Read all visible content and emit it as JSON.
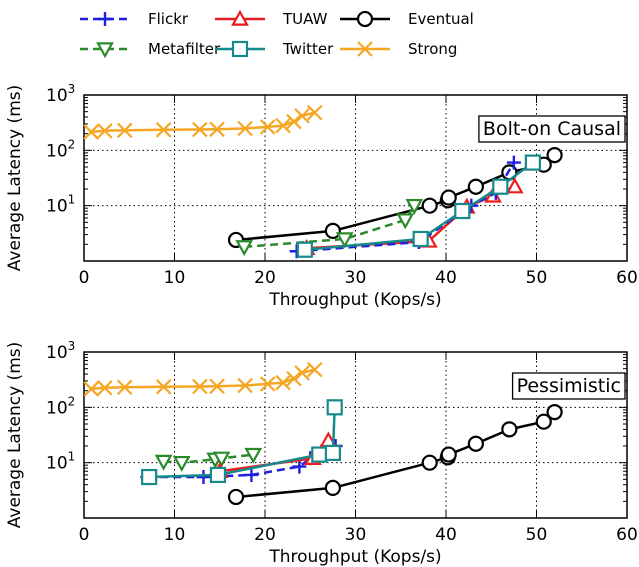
{
  "legend": {
    "items": [
      {
        "key": "flickr",
        "label": "Flickr"
      },
      {
        "key": "tuaw",
        "label": "TUAW"
      },
      {
        "key": "eventual",
        "label": "Eventual"
      },
      {
        "key": "metafilter",
        "label": "Metafilter"
      },
      {
        "key": "twitter",
        "label": "Twitter"
      },
      {
        "key": "strong",
        "label": "Strong"
      }
    ]
  },
  "series_styles": {
    "flickr": {
      "color": "#1f1fe0",
      "marker": "plus",
      "dash": "8,5"
    },
    "tuaw": {
      "color": "#ee1c1c",
      "marker": "triangle-up",
      "dash": ""
    },
    "eventual": {
      "color": "#000000",
      "marker": "circle",
      "dash": ""
    },
    "metafilter": {
      "color": "#2a8a2a",
      "marker": "triangle-down",
      "dash": "8,5"
    },
    "twitter": {
      "color": "#168a8a",
      "marker": "square",
      "dash": ""
    },
    "strong": {
      "color": "#f5a623",
      "marker": "x",
      "dash": ""
    }
  },
  "chart_data": [
    {
      "type": "line",
      "title": "Bolt-on Causal",
      "xlabel": "Throughput (Kops/s)",
      "ylabel": "Average Latency (ms)",
      "xlim": [
        0,
        60
      ],
      "ylim": [
        1,
        1000
      ],
      "yscale": "log",
      "xticks": [
        "0",
        "10",
        "20",
        "30",
        "40",
        "50",
        "60"
      ],
      "yticks": [
        "10^1",
        "10^2",
        "10^3"
      ],
      "grid": true,
      "series": [
        {
          "key": "strong",
          "x": [
            0.8,
            2.3,
            4.5,
            8.8,
            12.8,
            14.7,
            17.8,
            20.3,
            22.0,
            23.2,
            24.1,
            25.5
          ],
          "y": [
            215,
            225,
            230,
            235,
            238,
            240,
            248,
            265,
            280,
            330,
            420,
            480
          ]
        },
        {
          "key": "eventual",
          "x": [
            16.8,
            27.5,
            38.2,
            40.2,
            40.3,
            43.3,
            47.0,
            50.8,
            52.0
          ],
          "y": [
            2.4,
            3.5,
            10.0,
            12.5,
            14.0,
            22.0,
            40.0,
            55.0,
            82.0
          ]
        },
        {
          "key": "metafilter",
          "x": [
            17.7,
            28.8,
            35.5,
            36.5
          ],
          "y": [
            1.8,
            2.5,
            5.5,
            10.0
          ]
        },
        {
          "key": "tuaw",
          "x": [
            24.6,
            38.1,
            42.3,
            45.2,
            47.6
          ],
          "y": [
            1.7,
            2.3,
            9.5,
            15.0,
            22.0
          ]
        },
        {
          "key": "flickr",
          "x": [
            23.5,
            37.0,
            42.8,
            45.5,
            47.5
          ],
          "y": [
            1.5,
            2.2,
            10.0,
            17.0,
            60.0
          ]
        },
        {
          "key": "twitter",
          "x": [
            24.4,
            37.2,
            41.8,
            46.0,
            49.6
          ],
          "y": [
            1.6,
            2.5,
            8.0,
            22.0,
            60.0
          ]
        }
      ]
    },
    {
      "type": "line",
      "title": "Pessimistic",
      "xlabel": "Throughput (Kops/s)",
      "ylabel": "Average Latency (ms)",
      "xlim": [
        0,
        60
      ],
      "ylim": [
        1,
        1000
      ],
      "yscale": "log",
      "xticks": [
        "0",
        "10",
        "20",
        "30",
        "40",
        "50",
        "60"
      ],
      "yticks": [
        "10^1",
        "10^2",
        "10^3"
      ],
      "grid": true,
      "series": [
        {
          "key": "strong",
          "x": [
            0.8,
            2.3,
            4.5,
            8.8,
            12.8,
            14.7,
            17.8,
            20.3,
            22.0,
            23.2,
            24.1,
            25.5
          ],
          "y": [
            215,
            225,
            230,
            235,
            238,
            240,
            248,
            265,
            280,
            330,
            420,
            480
          ]
        },
        {
          "key": "eventual",
          "x": [
            16.8,
            27.5,
            38.2,
            40.2,
            40.3,
            43.3,
            47.0,
            50.8,
            52.0
          ],
          "y": [
            2.4,
            3.5,
            10.0,
            12.5,
            14.0,
            22.0,
            40.0,
            55.0,
            82.0
          ]
        },
        {
          "key": "metafilter",
          "x": [
            8.8,
            10.8,
            14.5,
            15.2,
            18.7
          ],
          "y": [
            10.5,
            10.0,
            11.5,
            12.0,
            14.0
          ]
        },
        {
          "key": "flickr",
          "x": [
            7.0,
            13.2,
            18.5,
            23.8,
            25.0,
            27.8
          ],
          "y": [
            5.5,
            5.5,
            6.0,
            8.5,
            12.0,
            20.0
          ]
        },
        {
          "key": "tuaw",
          "x": [
            15.0,
            25.3,
            26.2,
            27.0
          ],
          "y": [
            7.0,
            12.0,
            15.0,
            25.0
          ]
        },
        {
          "key": "twitter",
          "x": [
            7.2,
            14.8,
            26.0,
            27.5,
            27.7
          ],
          "y": [
            5.5,
            6.0,
            14.0,
            15.0,
            100.0
          ]
        }
      ]
    }
  ]
}
